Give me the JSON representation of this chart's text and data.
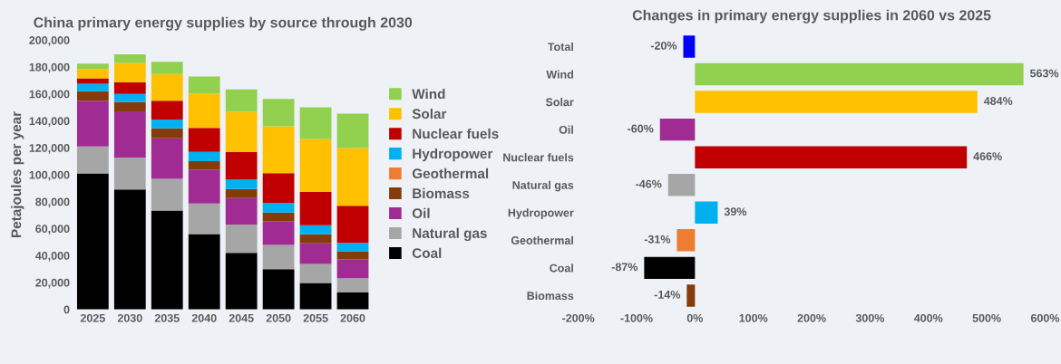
{
  "chart_data": [
    {
      "type": "bar",
      "title": "China primary energy supplies by source through 2030",
      "ylabel": "Petajoules per year",
      "stacked": true,
      "legend": "right",
      "grid": false,
      "categories": [
        "2025",
        "2030",
        "2035",
        "2040",
        "2045",
        "2050",
        "2055",
        "2060"
      ],
      "ylim": [
        0,
        200000
      ],
      "yticks": [
        {
          "value": 0,
          "label": "0"
        },
        {
          "value": 20000,
          "label": "20,000"
        },
        {
          "value": 40000,
          "label": "40,000"
        },
        {
          "value": 60000,
          "label": "60,000"
        },
        {
          "value": 80000,
          "label": "80,000"
        },
        {
          "value": 100000,
          "label": "100,000"
        },
        {
          "value": 120000,
          "label": "120,000"
        },
        {
          "value": 140000,
          "label": "140,000"
        },
        {
          "value": 160000,
          "label": "160,000"
        },
        {
          "value": 180000,
          "label": "180,000"
        },
        {
          "value": 200000,
          "label": "200,000"
        }
      ],
      "series": [
        {
          "name": "Coal",
          "color": "#000000",
          "values": [
            101000,
            89000,
            73500,
            56000,
            42000,
            29900,
            19600,
            12800
          ]
        },
        {
          "name": "Natural gas",
          "color": "#a6a6a6",
          "values": [
            20000,
            23800,
            23500,
            22700,
            21000,
            18000,
            14100,
            10300
          ]
        },
        {
          "name": "Oil",
          "color": "#a02b93",
          "values": [
            34000,
            34200,
            30000,
            25100,
            19700,
            17700,
            15300,
            14000
          ]
        },
        {
          "name": "Biomass",
          "color": "#843c0c",
          "values": [
            7000,
            7000,
            7400,
            6200,
            6700,
            6300,
            6700,
            6000
          ]
        },
        {
          "name": "Geothermal",
          "color": "#ed7d31",
          "values": [
            0,
            0,
            0,
            0,
            0,
            0,
            0,
            0
          ]
        },
        {
          "name": "Hydropower",
          "color": "#00b0f0",
          "values": [
            5500,
            6000,
            6600,
            6900,
            7200,
            7200,
            6800,
            6300
          ]
        },
        {
          "name": "Nuclear fuels",
          "color": "#c00000",
          "values": [
            4000,
            8500,
            14000,
            17900,
            20300,
            22000,
            24700,
            27500
          ]
        },
        {
          "name": "Solar",
          "color": "#ffc000",
          "values": [
            7000,
            14500,
            19800,
            25400,
            29800,
            34900,
            39300,
            42900
          ]
        },
        {
          "name": "Wind",
          "color": "#92d050",
          "values": [
            4000,
            6400,
            9000,
            12800,
            16700,
            20200,
            23600,
            25600
          ]
        }
      ]
    },
    {
      "type": "bar",
      "title": "Changes in primary energy supplies in 2060 vs 2025",
      "orientation": "horizontal",
      "grid": false,
      "categories": [
        "Total",
        "Wind",
        "Solar",
        "Oil",
        "Nuclear fuels",
        "Natural gas",
        "Hydropower",
        "Geothermal",
        "Coal",
        "Biomass"
      ],
      "values": [
        -20,
        563,
        484,
        -60,
        466,
        -46,
        39,
        -31,
        -87,
        -14
      ],
      "value_labels": [
        "-20%",
        "563%",
        "484%",
        "-60%",
        "466%",
        "-46%",
        "39%",
        "-31%",
        "-87%",
        "-14%"
      ],
      "colors": [
        "#0000ff",
        "#92d050",
        "#ffc000",
        "#a02b93",
        "#c00000",
        "#a6a6a6",
        "#00b0f0",
        "#ed7d31",
        "#000000",
        "#843c0c"
      ],
      "xlim": [
        -200,
        600
      ],
      "xticks": [
        {
          "value": -200,
          "label": "-200%"
        },
        {
          "value": -100,
          "label": "-100%"
        },
        {
          "value": 0,
          "label": "0%"
        },
        {
          "value": 100,
          "label": "100%"
        },
        {
          "value": 200,
          "label": "200%"
        },
        {
          "value": 300,
          "label": "300%"
        },
        {
          "value": 400,
          "label": "400%"
        },
        {
          "value": 500,
          "label": "500%"
        },
        {
          "value": 600,
          "label": "600%"
        }
      ]
    }
  ]
}
